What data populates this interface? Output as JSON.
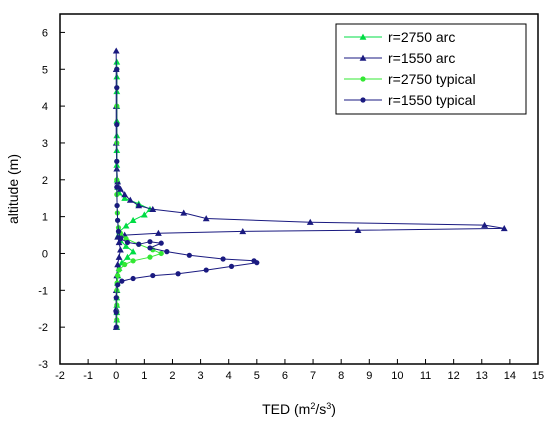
{
  "chart_data": {
    "type": "line",
    "xlabel_main": "TED (m",
    "xlabel_sup1": "2",
    "xlabel_mid": "/s",
    "xlabel_sup2": "3",
    "xlabel_end": ")",
    "ylabel": "altitude (m)",
    "xlim": [
      -2,
      15
    ],
    "ylim": [
      -3,
      6.5
    ],
    "xticks": [
      -2,
      -1,
      0,
      1,
      2,
      3,
      4,
      5,
      6,
      7,
      8,
      9,
      10,
      11,
      12,
      13,
      14,
      15
    ],
    "yticks": [
      -3,
      -2,
      -1,
      0,
      1,
      2,
      3,
      4,
      5,
      6
    ],
    "grid": false,
    "legend_position": "top-right",
    "series": [
      {
        "name": "r=2750 arc",
        "color": "#00dd44",
        "marker": "triangle",
        "points": [
          [
            0.02,
            -2.0
          ],
          [
            0.02,
            -1.8
          ],
          [
            0.02,
            -1.6
          ],
          [
            0.02,
            -1.4
          ],
          [
            0.02,
            -1.2
          ],
          [
            0.03,
            -1.0
          ],
          [
            0.04,
            -0.8
          ],
          [
            0.06,
            -0.6
          ],
          [
            0.1,
            -0.4
          ],
          [
            0.2,
            -0.25
          ],
          [
            0.4,
            -0.1
          ],
          [
            0.6,
            0.05
          ],
          [
            0.35,
            0.2
          ],
          [
            0.15,
            0.35
          ],
          [
            0.08,
            0.5
          ],
          [
            0.12,
            0.6
          ],
          [
            0.35,
            0.75
          ],
          [
            0.6,
            0.9
          ],
          [
            1.0,
            1.05
          ],
          [
            1.2,
            1.2
          ],
          [
            0.8,
            1.35
          ],
          [
            0.3,
            1.5
          ],
          [
            0.1,
            1.65
          ],
          [
            0.05,
            1.8
          ],
          [
            0.03,
            2.0
          ],
          [
            0.02,
            2.4
          ],
          [
            0.02,
            2.8
          ],
          [
            0.02,
            3.2
          ],
          [
            0.02,
            3.6
          ],
          [
            0.02,
            4.0
          ],
          [
            0.02,
            4.4
          ],
          [
            0.02,
            4.8
          ],
          [
            0.02,
            5.2
          ]
        ]
      },
      {
        "name": "r=1550 arc",
        "color": "#1a1a80",
        "marker": "triangle",
        "points": [
          [
            0.0,
            -2.0
          ],
          [
            0.0,
            -1.5
          ],
          [
            0.0,
            -1.0
          ],
          [
            0.02,
            -0.6
          ],
          [
            0.05,
            -0.3
          ],
          [
            0.1,
            -0.1
          ],
          [
            0.15,
            0.1
          ],
          [
            0.1,
            0.3
          ],
          [
            0.05,
            0.45
          ],
          [
            0.3,
            0.5
          ],
          [
            1.5,
            0.55
          ],
          [
            4.5,
            0.6
          ],
          [
            8.6,
            0.63
          ],
          [
            13.8,
            0.68
          ],
          [
            13.1,
            0.77
          ],
          [
            6.9,
            0.85
          ],
          [
            3.2,
            0.95
          ],
          [
            2.4,
            1.1
          ],
          [
            1.3,
            1.2
          ],
          [
            0.8,
            1.3
          ],
          [
            0.5,
            1.45
          ],
          [
            0.3,
            1.6
          ],
          [
            0.15,
            1.75
          ],
          [
            0.05,
            1.95
          ],
          [
            0.02,
            2.3
          ],
          [
            0.0,
            3.0
          ],
          [
            0.0,
            4.0
          ],
          [
            0.0,
            5.0
          ],
          [
            0.0,
            5.5
          ]
        ]
      },
      {
        "name": "r=2750 typical",
        "color": "#33e833",
        "marker": "circle",
        "points": [
          [
            0.02,
            -2.0
          ],
          [
            0.02,
            -1.8
          ],
          [
            0.02,
            -1.6
          ],
          [
            0.02,
            -1.4
          ],
          [
            0.02,
            -1.2
          ],
          [
            0.02,
            -1.0
          ],
          [
            0.03,
            -0.8
          ],
          [
            0.05,
            -0.6
          ],
          [
            0.1,
            -0.45
          ],
          [
            0.3,
            -0.3
          ],
          [
            0.6,
            -0.2
          ],
          [
            1.2,
            -0.1
          ],
          [
            1.6,
            0.0
          ],
          [
            1.3,
            0.1
          ],
          [
            0.8,
            0.25
          ],
          [
            0.35,
            0.4
          ],
          [
            0.15,
            0.55
          ],
          [
            0.08,
            0.7
          ],
          [
            0.05,
            0.9
          ],
          [
            0.04,
            1.1
          ],
          [
            0.03,
            1.3
          ],
          [
            0.02,
            1.6
          ],
          [
            0.02,
            2.0
          ],
          [
            0.02,
            2.5
          ],
          [
            0.02,
            3.0
          ],
          [
            0.02,
            3.5
          ],
          [
            0.02,
            4.0
          ],
          [
            0.02,
            4.5
          ],
          [
            0.02,
            5.0
          ]
        ]
      },
      {
        "name": "r=1550 typical",
        "color": "#1a1a80",
        "marker": "circle",
        "points": [
          [
            0.0,
            -2.0
          ],
          [
            0.0,
            -1.6
          ],
          [
            0.0,
            -1.2
          ],
          [
            0.05,
            -0.85
          ],
          [
            0.2,
            -0.75
          ],
          [
            0.6,
            -0.68
          ],
          [
            1.3,
            -0.6
          ],
          [
            2.2,
            -0.55
          ],
          [
            3.2,
            -0.45
          ],
          [
            4.1,
            -0.35
          ],
          [
            5.0,
            -0.25
          ],
          [
            4.9,
            -0.2
          ],
          [
            3.8,
            -0.15
          ],
          [
            2.6,
            -0.05
          ],
          [
            1.8,
            0.05
          ],
          [
            1.2,
            0.15
          ],
          [
            1.6,
            0.28
          ],
          [
            1.2,
            0.32
          ],
          [
            0.8,
            0.25
          ],
          [
            0.4,
            0.3
          ],
          [
            0.15,
            0.4
          ],
          [
            0.08,
            0.6
          ],
          [
            0.05,
            0.9
          ],
          [
            0.03,
            1.3
          ],
          [
            0.02,
            1.8
          ],
          [
            0.02,
            2.5
          ],
          [
            0.02,
            3.5
          ],
          [
            0.02,
            4.5
          ],
          [
            0.02,
            5.0
          ]
        ]
      }
    ]
  }
}
